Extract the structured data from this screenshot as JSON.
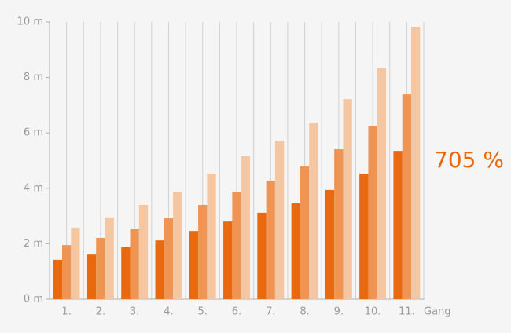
{
  "chart_data": {
    "type": "bar",
    "categories": [
      "1.",
      "2.",
      "3.",
      "4.",
      "5.",
      "6.",
      "7.",
      "8.",
      "9.",
      "10.",
      "11."
    ],
    "x_label": "Gang",
    "annotation": "705 %",
    "series": [
      {
        "color": "#e8690f",
        "values": [
          1.42,
          1.61,
          1.87,
          2.12,
          2.46,
          2.8,
          3.12,
          3.46,
          3.94,
          4.53,
          5.35
        ]
      },
      {
        "color": "#ef9452",
        "values": [
          1.95,
          2.21,
          2.55,
          2.92,
          3.4,
          3.88,
          4.28,
          4.79,
          5.41,
          6.26,
          7.39
        ]
      },
      {
        "color": "#f5c6a2",
        "values": [
          2.58,
          2.95,
          3.4,
          3.88,
          4.53,
          5.16,
          5.72,
          6.37,
          7.22,
          8.33,
          9.83
        ]
      }
    ],
    "ylim": [
      0,
      10
    ],
    "yticks": [
      {
        "value": 0,
        "label": "0 m"
      },
      {
        "value": 2,
        "label": "2 m"
      },
      {
        "value": 4,
        "label": "4 m"
      },
      {
        "value": 6,
        "label": "6 m"
      },
      {
        "value": 8,
        "label": "8 m"
      },
      {
        "value": 10,
        "label": "10 m"
      }
    ],
    "grid": true
  }
}
